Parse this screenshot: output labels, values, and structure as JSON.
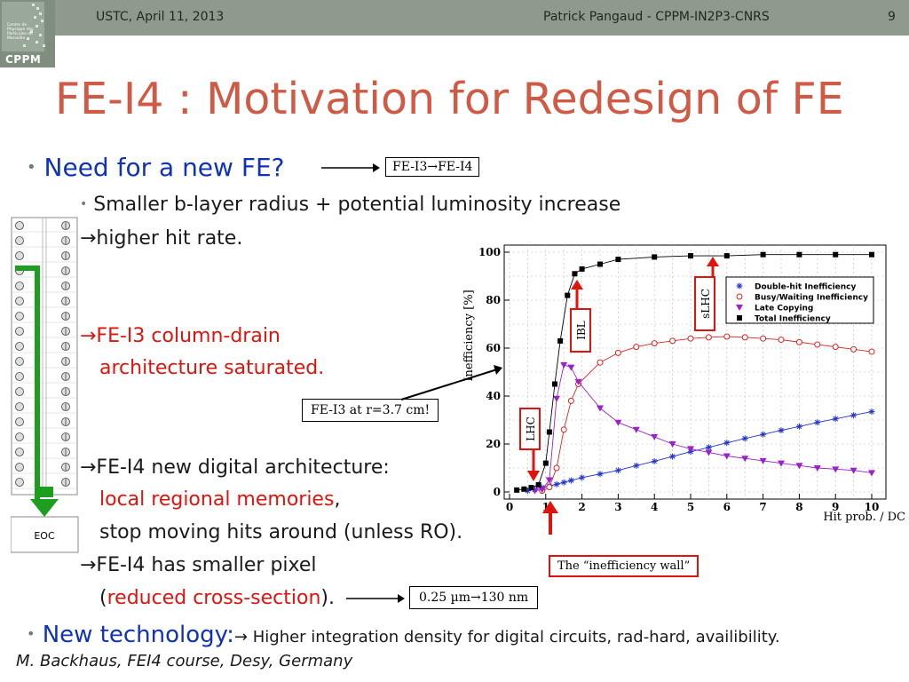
{
  "header": {
    "left": "USTC, April 11, 2013",
    "center": "Patrick Pangaud - CPPM-IN2P3-CNRS",
    "page": "9",
    "logo_text": "CPPM",
    "logo_small": "Centre de Physique des Particules de Marseille"
  },
  "title": "FE-I4 : Motivation for Redesign of FE",
  "bullets": {
    "b1": "Need for a new FE?",
    "b1_box": "FE-I3→FE-I4",
    "b1_sub": "Smaller b-layer radius + potential luminosity increase",
    "hit_rate": "→higher hit rate.",
    "fei3_1": "→FE-I3 column-drain",
    "fei3_2": "architecture saturated.",
    "fei3_box": "FE-I3 at r=3.7 cm!",
    "fei4_1": "→FE-I4 new digital architecture:",
    "fei4_2": "local regional memories",
    "fei4_2b": ",",
    "fei4_3": "stop moving hits around (unless RO).",
    "fei4_4": "→FE-I4 has smaller pixel",
    "fei4_5a": "(",
    "fei4_5b": "reduced cross-section",
    "fei4_5c": ").",
    "size_box": "0.25 µm→130 nm",
    "b2": "New technology:",
    "b2_rest": "→ Higher integration density for digital circuits, rad-hard, availibility."
  },
  "eoc_label": "EOC",
  "wall_label": "The “inefficiency wall”",
  "chart_data": {
    "type": "line",
    "xlabel": "Hit prob. / DC",
    "ylabel": "Inefficiency [%]",
    "xlim": [
      0,
      10
    ],
    "ylim": [
      0,
      100
    ],
    "xticks": [
      "0",
      "1",
      "2",
      "3",
      "4",
      "5",
      "6",
      "7",
      "8",
      "9",
      "10"
    ],
    "yticks": [
      "0",
      "20",
      "40",
      "60",
      "80",
      "100"
    ],
    "grid": true,
    "legend_position": "top-right",
    "annotations": [
      "LHC",
      "IBL",
      "sLHC"
    ],
    "series": [
      {
        "name": "Double-hit Inefficiency",
        "marker": "star",
        "color": "#2233cc",
        "x": [
          0.5,
          0.7,
          0.9,
          1.1,
          1.3,
          1.5,
          1.7,
          2.0,
          2.5,
          3.0,
          3.5,
          4.0,
          4.5,
          5.0,
          5.5,
          6.0,
          6.5,
          7.0,
          7.5,
          8.0,
          8.5,
          9.0,
          9.5,
          10.0
        ],
        "y": [
          0.5,
          1.0,
          1.8,
          2.5,
          3.2,
          4.0,
          4.8,
          6.0,
          7.5,
          9.0,
          11.0,
          12.8,
          14.8,
          16.8,
          18.6,
          20.5,
          22.3,
          24.0,
          25.7,
          27.3,
          29.0,
          30.5,
          32.0,
          33.5
        ]
      },
      {
        "name": "Busy/Waiting Inefficiency",
        "marker": "circle",
        "color": "#dd2222",
        "x": [
          0.9,
          1.1,
          1.3,
          1.5,
          1.7,
          1.9,
          2.5,
          3.0,
          3.5,
          4.0,
          4.5,
          5.0,
          5.5,
          6.0,
          6.5,
          7.0,
          7.5,
          8.0,
          8.5,
          9.0,
          9.5,
          10.0
        ],
        "y": [
          0.5,
          2.0,
          10.0,
          26.0,
          38.0,
          45.0,
          54.0,
          58.0,
          60.5,
          62.0,
          63.0,
          64.0,
          64.5,
          64.8,
          64.5,
          64.0,
          63.5,
          62.5,
          61.5,
          60.5,
          59.5,
          58.5
        ]
      },
      {
        "name": "Late Copying",
        "marker": "triangle-down",
        "color": "#9922cc",
        "x": [
          0.7,
          0.9,
          1.1,
          1.3,
          1.5,
          1.7,
          1.9,
          2.5,
          3.0,
          3.5,
          4.0,
          4.5,
          5.0,
          5.5,
          6.0,
          6.5,
          7.0,
          7.5,
          8.0,
          8.5,
          9.0,
          9.5,
          10.0
        ],
        "y": [
          0.5,
          1.0,
          5.0,
          39.0,
          53.0,
          52.0,
          46.0,
          35.0,
          29.0,
          26.0,
          23.0,
          20.0,
          18.0,
          16.5,
          15.0,
          14.0,
          13.0,
          12.0,
          11.0,
          10.0,
          9.5,
          9.0,
          8.0
        ]
      },
      {
        "name": "Total Inefficiency",
        "marker": "square",
        "color": "#000000",
        "x": [
          0.2,
          0.4,
          0.6,
          0.8,
          1.0,
          1.1,
          1.25,
          1.4,
          1.6,
          1.8,
          2.0,
          2.5,
          3.0,
          4.0,
          5.0,
          6.0,
          7.0,
          8.0,
          9.0,
          10.0
        ],
        "y": [
          0.8,
          1.2,
          1.8,
          3.0,
          12.0,
          25.0,
          45.0,
          63.0,
          82.0,
          91.0,
          93.0,
          95.0,
          97.0,
          98.0,
          98.5,
          98.5,
          99.0,
          99.0,
          99.0,
          99.0
        ]
      }
    ]
  }
}
